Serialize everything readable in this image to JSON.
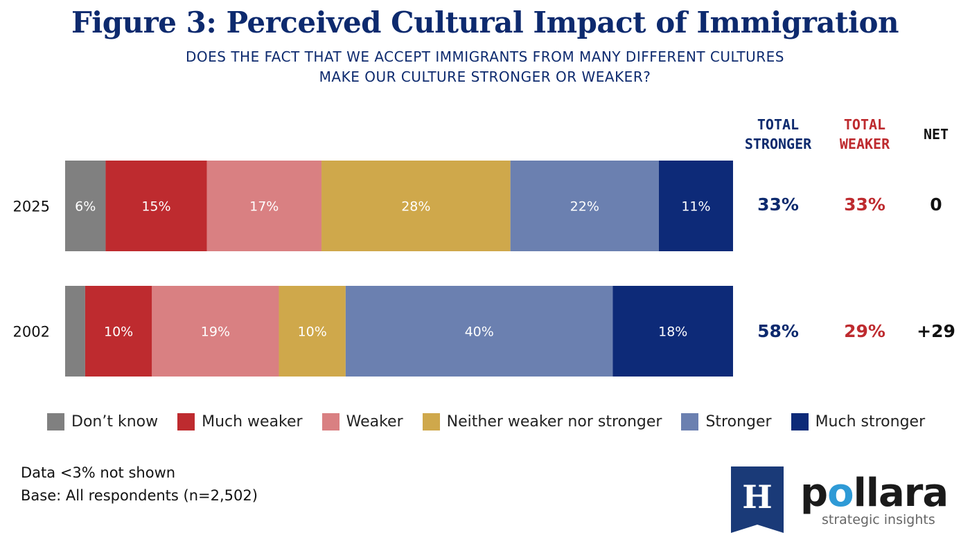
{
  "title": "Figure 3: Perceived Cultural Impact of Immigration",
  "subtitle_line1": "DOES THE FACT THAT WE ACCEPT IMMIGRANTS FROM MANY DIFFERENT CULTURES",
  "subtitle_line2": "MAKE OUR CULTURE STRONGER OR WEAKER?",
  "columns": {
    "total_stronger": [
      "TOTAL",
      "STRONGER"
    ],
    "total_weaker": [
      "TOTAL",
      "WEAKER"
    ],
    "net": "NET"
  },
  "colors": {
    "dont_know": "#808080",
    "much_weaker": "#be2b2f",
    "weaker": "#d98082",
    "neither": "#cfa84b",
    "stronger": "#6b80b0",
    "much_stronger": "#0d2a78"
  },
  "chart_data": {
    "type": "bar",
    "orientation": "horizontal",
    "stacked": true,
    "normalized": true,
    "categories": [
      "2025",
      "2002"
    ],
    "series": [
      {
        "name": "Don’t know",
        "color_key": "dont_know",
        "values": [
          6,
          3
        ],
        "labels": [
          "6%",
          ""
        ]
      },
      {
        "name": "Much weaker",
        "color_key": "much_weaker",
        "values": [
          15,
          10
        ],
        "labels": [
          "15%",
          "10%"
        ]
      },
      {
        "name": "Weaker",
        "color_key": "weaker",
        "values": [
          17,
          19
        ],
        "labels": [
          "17%",
          "19%"
        ]
      },
      {
        "name": "Neither weaker nor stronger",
        "color_key": "neither",
        "values": [
          28,
          10
        ],
        "labels": [
          "28%",
          "10%"
        ]
      },
      {
        "name": "Stronger",
        "color_key": "stronger",
        "values": [
          22,
          40
        ],
        "labels": [
          "22%",
          "40%"
        ]
      },
      {
        "name": "Much stronger",
        "color_key": "much_stronger",
        "values": [
          11,
          18
        ],
        "labels": [
          "11%",
          "18%"
        ]
      }
    ],
    "totals": [
      {
        "year": "2025",
        "total_stronger": "33%",
        "total_weaker": "33%",
        "net": "0"
      },
      {
        "year": "2002",
        "total_stronger": "58%",
        "total_weaker": "29%",
        "net": "+29"
      }
    ],
    "legend_position": "bottom"
  },
  "footnotes": [
    "Data <3% not shown",
    "Base: All respondents (n=2,502)"
  ],
  "logo": {
    "mark_letter": "H",
    "brand_before": "p",
    "brand_o": "o",
    "brand_after": "llara",
    "tagline": "strategic insights"
  }
}
